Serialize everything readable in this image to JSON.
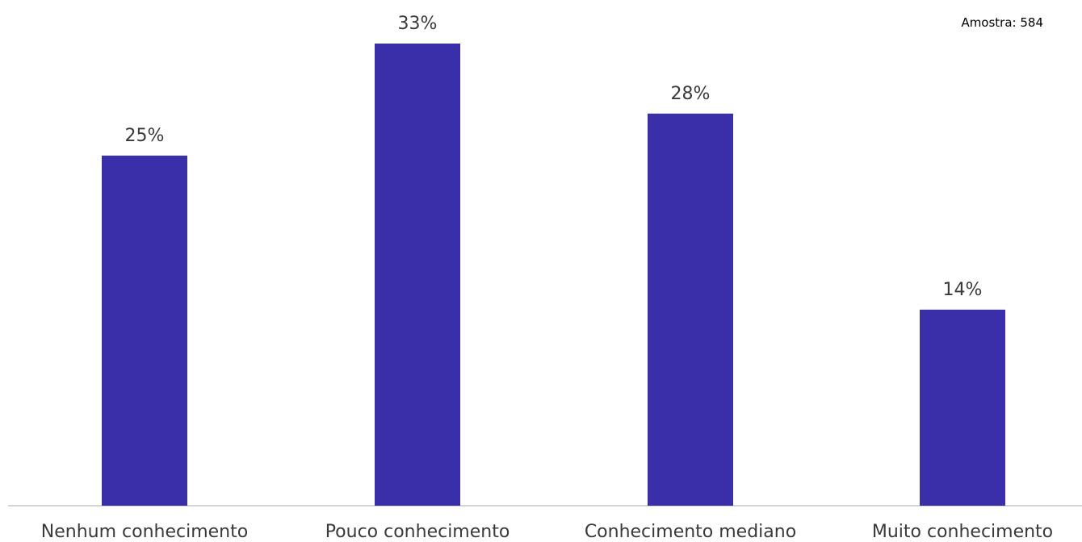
{
  "note": "Amostra: 584",
  "colors": {
    "bar": "#3b2fa9",
    "axis": "#d4d4d4",
    "text": "#3a3a3a"
  },
  "chart_data": {
    "type": "bar",
    "categories": [
      "Nenhum conhecimento",
      "Pouco conhecimento",
      "Conhecimento mediano",
      "Muito conhecimento"
    ],
    "values": [
      25,
      33,
      28,
      14
    ],
    "value_labels": [
      "25%",
      "33%",
      "28%",
      "14%"
    ],
    "ylim": [
      0,
      33
    ],
    "grid": false,
    "legend": "none"
  }
}
